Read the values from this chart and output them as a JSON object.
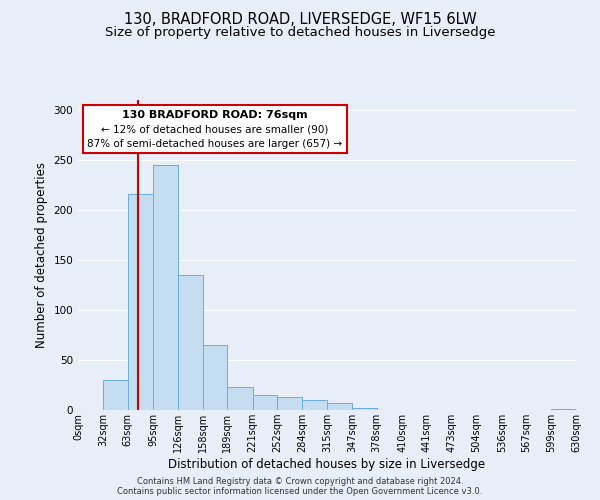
{
  "title": "130, BRADFORD ROAD, LIVERSEDGE, WF15 6LW",
  "subtitle": "Size of property relative to detached houses in Liversedge",
  "xlabel": "Distribution of detached houses by size in Liversedge",
  "ylabel": "Number of detached properties",
  "bar_edges": [
    0,
    32,
    63,
    95,
    126,
    158,
    189,
    221,
    252,
    284,
    315,
    347,
    378,
    410,
    441,
    473,
    504,
    536,
    567,
    599,
    630
  ],
  "bar_heights": [
    0,
    30,
    216,
    245,
    135,
    65,
    23,
    15,
    13,
    10,
    7,
    2,
    0,
    0,
    0,
    0,
    0,
    0,
    0,
    1
  ],
  "bar_color": "#c5ddf0",
  "bar_edgecolor": "#6aaed6",
  "vline_x": 76,
  "vline_color": "#cc0000",
  "ylim": [
    0,
    310
  ],
  "yticks": [
    0,
    50,
    100,
    150,
    200,
    250,
    300
  ],
  "annotation_title": "130 BRADFORD ROAD: 76sqm",
  "annotation_line1": "← 12% of detached houses are smaller (90)",
  "annotation_line2": "87% of semi-detached houses are larger (657) →",
  "footer1": "Contains HM Land Registry data © Crown copyright and database right 2024.",
  "footer2": "Contains public sector information licensed under the Open Government Licence v3.0.",
  "background_color": "#e8eef8",
  "plot_bg_color": "#e8eef8",
  "grid_color": "#ffffff",
  "title_fontsize": 10.5,
  "subtitle_fontsize": 9.5,
  "tick_label_fontsize": 7,
  "xlabel_fontsize": 8.5,
  "ylabel_fontsize": 8.5,
  "footer_fontsize": 6,
  "ann_title_fontsize": 8,
  "ann_text_fontsize": 7.5
}
